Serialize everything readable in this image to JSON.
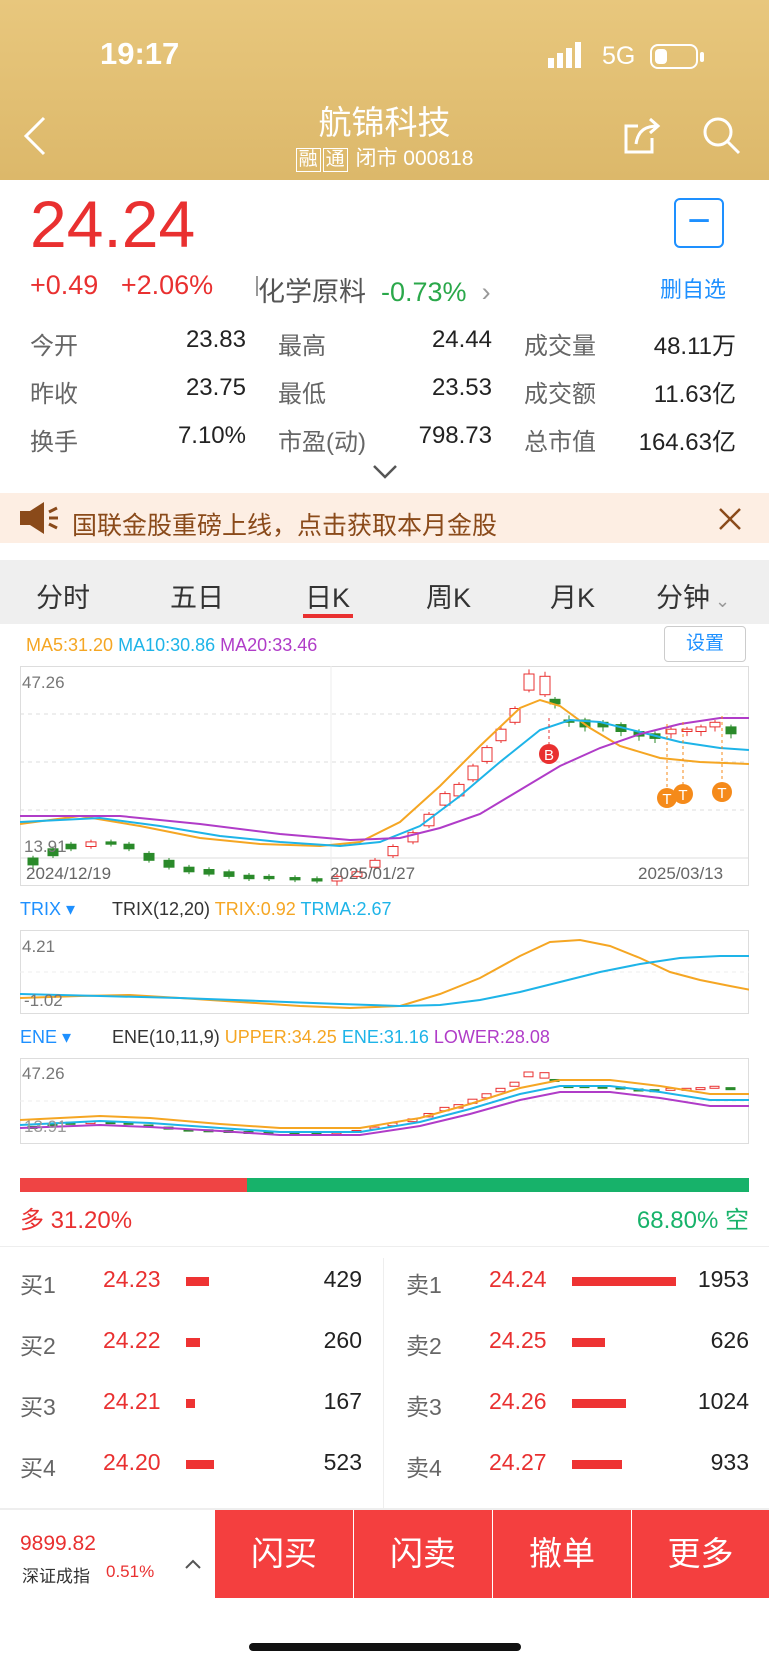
{
  "status_bar": {
    "time": "19:17",
    "network": "5G"
  },
  "header": {
    "title": "航锦科技",
    "tags": [
      "融",
      "通"
    ],
    "subtitle": "闭市 000818"
  },
  "quote": {
    "price": "24.24",
    "change": "+0.49",
    "change_pct": "+2.06%",
    "industry": "化学原料",
    "industry_pct": "-0.73%",
    "fav_label": "删自选",
    "stats": [
      {
        "label": "今开",
        "value": "23.83"
      },
      {
        "label": "最高",
        "value": "24.44"
      },
      {
        "label": "成交量",
        "value": "48.11万"
      },
      {
        "label": "昨收",
        "value": "23.75"
      },
      {
        "label": "最低",
        "value": "23.53"
      },
      {
        "label": "成交额",
        "value": "11.63亿"
      },
      {
        "label": "换手",
        "value": "7.10%"
      },
      {
        "label": "市盈(动)",
        "value": "798.73"
      },
      {
        "label": "总市值",
        "value": "164.63亿"
      }
    ]
  },
  "banner": {
    "text": "国联金股重磅上线，点击获取本月金股"
  },
  "tabs": [
    "分时",
    "五日",
    "日K",
    "周K",
    "月K",
    "分钟"
  ],
  "active_tab": "日K",
  "kline": {
    "ma5": "MA5:31.20",
    "ma10": "MA10:30.86",
    "ma20": "MA20:33.46",
    "settings": "设置",
    "ymax": "47.26",
    "ymin": "13.91",
    "dates": [
      "2024/12/19",
      "2025/01/27",
      "2025/03/13"
    ],
    "marker_b": "B",
    "marker_t": "T"
  },
  "trix": {
    "name": "TRIX",
    "params": "TRIX(12,20)",
    "trix": "TRIX:0.92",
    "trma": "TRMA:2.67",
    "ymax": "4.21",
    "ymin": "-1.02"
  },
  "ene": {
    "name": "ENE",
    "params": "ENE(10,11,9)",
    "upper": "UPPER:34.25",
    "ene": "ENE:31.16",
    "lower": "LOWER:28.08",
    "ymax": "47.26",
    "ymin": "13.91"
  },
  "longshort": {
    "long_label": "多 31.20%",
    "short_label": "68.80% 空",
    "long": 0.312
  },
  "orderbook": {
    "bids": [
      {
        "label": "买1",
        "price": "24.23",
        "vol": "429",
        "share": 0.22
      },
      {
        "label": "买2",
        "price": "24.22",
        "vol": "260",
        "share": 0.13
      },
      {
        "label": "买3",
        "price": "24.21",
        "vol": "167",
        "share": 0.09
      },
      {
        "label": "买4",
        "price": "24.20",
        "vol": "523",
        "share": 0.27
      }
    ],
    "asks": [
      {
        "label": "卖1",
        "price": "24.24",
        "vol": "1953",
        "share": 1.0
      },
      {
        "label": "卖2",
        "price": "24.25",
        "vol": "626",
        "share": 0.32
      },
      {
        "label": "卖3",
        "price": "24.26",
        "vol": "1024",
        "share": 0.52
      },
      {
        "label": "卖4",
        "price": "24.27",
        "vol": "933",
        "share": 0.48
      }
    ]
  },
  "index": {
    "value": "9899.82",
    "name": "深证成指",
    "pct": "0.51%"
  },
  "actions": [
    "闪买",
    "闪卖",
    "撤单",
    "更多"
  ],
  "colors": {
    "up": "#e93030",
    "down": "#2aa84a",
    "ma5": "#f5a623",
    "ma10": "#1eb4e8",
    "ma20": "#b03cc8",
    "accent": "#1e90ff"
  }
}
